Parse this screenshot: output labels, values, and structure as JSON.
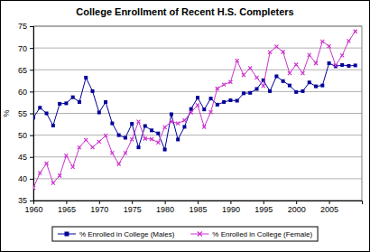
{
  "chart_data": {
    "type": "line",
    "title": "College Enrollment of Recent H.S. Completers",
    "y_label": "%",
    "x": [
      1960,
      1961,
      1962,
      1963,
      1964,
      1965,
      1966,
      1967,
      1968,
      1969,
      1970,
      1971,
      1972,
      1973,
      1974,
      1975,
      1976,
      1977,
      1978,
      1979,
      1980,
      1981,
      1982,
      1983,
      1984,
      1985,
      1986,
      1987,
      1988,
      1989,
      1990,
      1991,
      1992,
      1993,
      1994,
      1995,
      1996,
      1997,
      1998,
      1999,
      2000,
      2001,
      2002,
      2003,
      2004,
      2005,
      2006,
      2007,
      2008,
      2009
    ],
    "series": [
      {
        "name": "% Enrolled in College (Males)",
        "color": "#000099",
        "marker": "square",
        "values": [
          54.0,
          56.3,
          55.0,
          52.2,
          57.2,
          57.3,
          58.7,
          57.6,
          63.2,
          60.1,
          55.2,
          57.6,
          52.7,
          50.0,
          49.4,
          52.6,
          47.2,
          52.1,
          51.1,
          50.4,
          46.7,
          54.8,
          49.0,
          51.9,
          56.0,
          58.6,
          55.9,
          58.4,
          57.0,
          57.6,
          58.0,
          57.9,
          59.6,
          59.7,
          60.6,
          62.6,
          60.1,
          63.5,
          62.4,
          61.4,
          59.9,
          60.1,
          62.1,
          61.2,
          61.4,
          66.5,
          65.8,
          66.1,
          65.9,
          66.0
        ]
      },
      {
        "name": "% Enrolled in College (Female)",
        "color": "#cc33cc",
        "marker": "x",
        "values": [
          37.9,
          41.3,
          43.5,
          39.0,
          40.7,
          45.3,
          42.7,
          47.2,
          48.9,
          47.2,
          48.5,
          49.9,
          45.9,
          43.4,
          45.9,
          49.0,
          53.1,
          49.2,
          49.1,
          48.3,
          51.8,
          53.1,
          52.7,
          53.4,
          55.2,
          56.9,
          51.9,
          55.3,
          60.7,
          61.6,
          62.2,
          67.1,
          63.8,
          65.4,
          63.2,
          61.3,
          69.0,
          70.3,
          69.1,
          64.2,
          66.2,
          64.2,
          68.4,
          66.5,
          71.5,
          70.4,
          66.0,
          68.3,
          71.6,
          73.8
        ]
      }
    ],
    "xlim": [
      1960,
      2010
    ],
    "xticks": [
      1960,
      1965,
      1970,
      1975,
      1980,
      1985,
      1990,
      1995,
      2000,
      2005
    ],
    "ylim": [
      35,
      75
    ],
    "yticks": [
      35,
      40,
      45,
      50,
      55,
      60,
      65,
      70,
      75
    ],
    "grid": true,
    "legend": "bottom"
  }
}
